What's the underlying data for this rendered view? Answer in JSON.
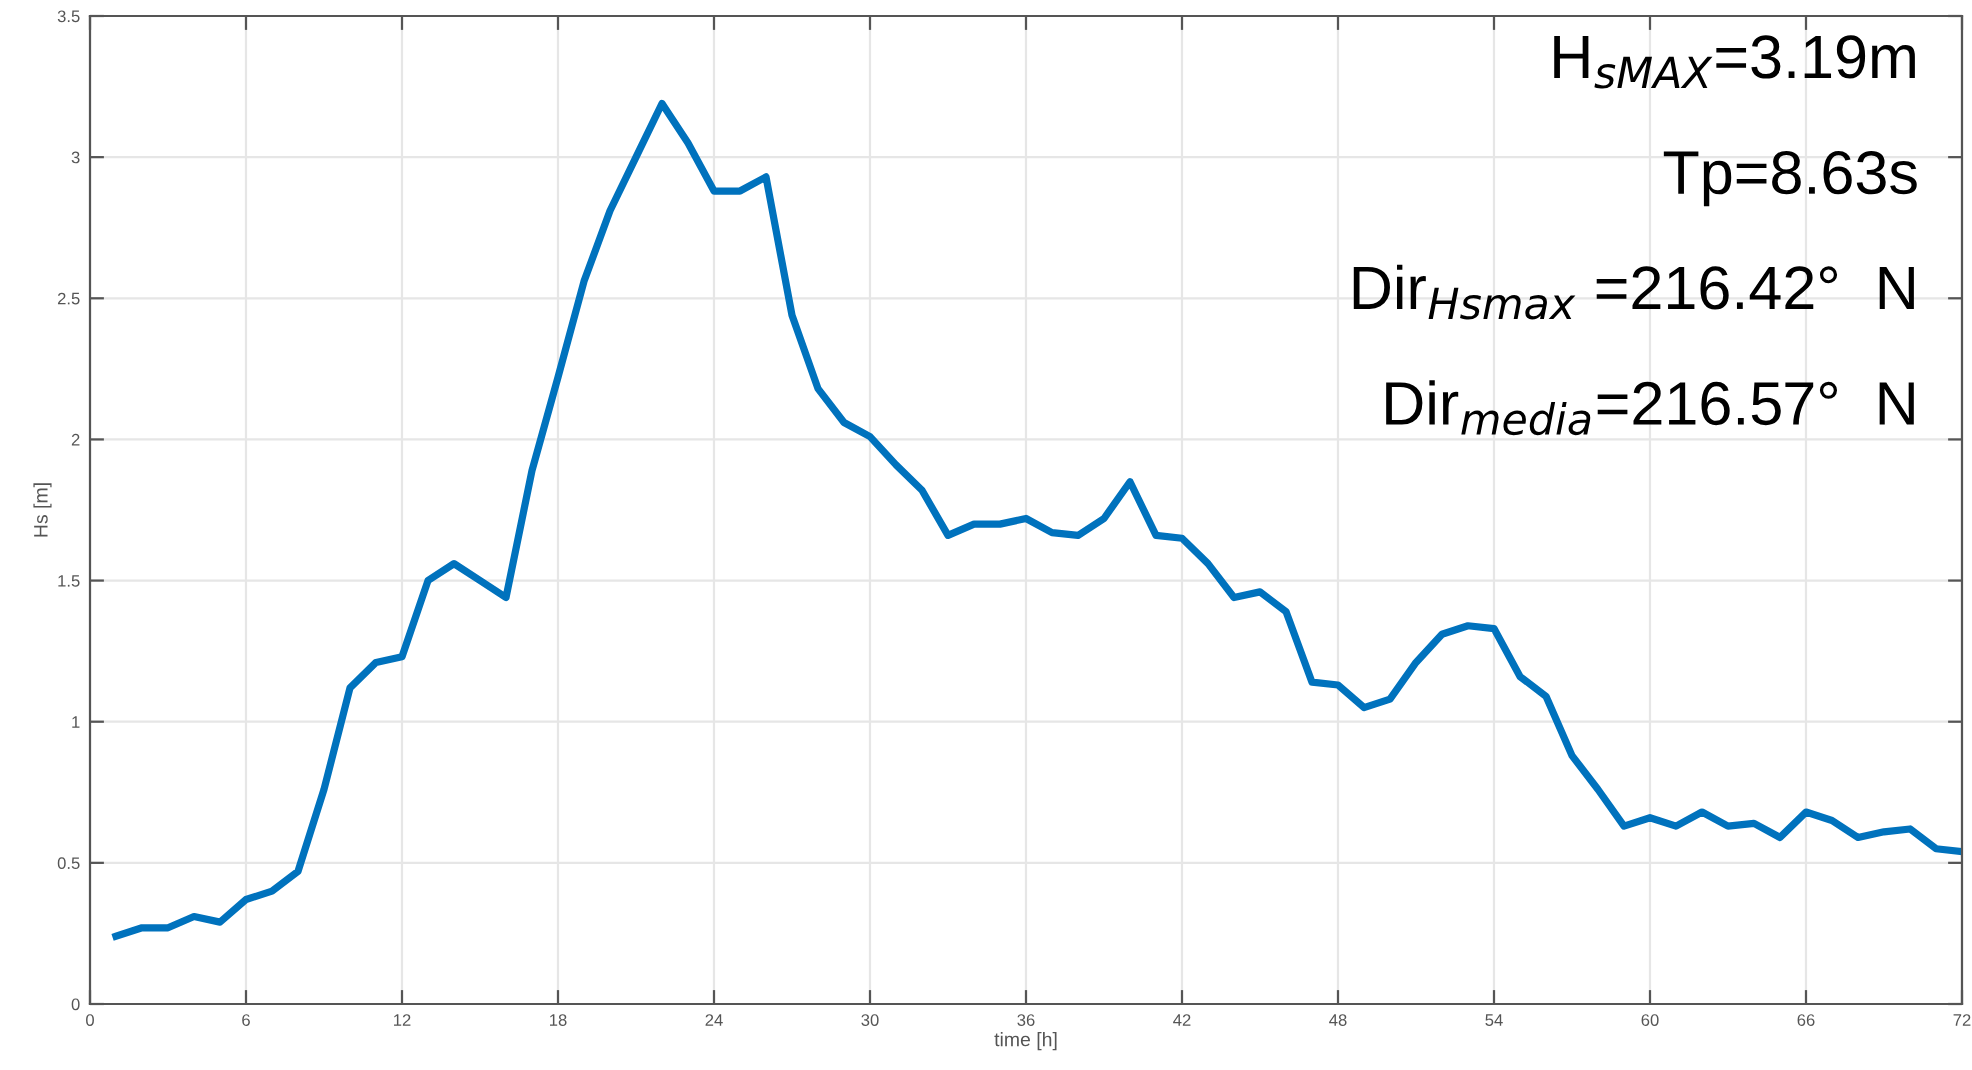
{
  "chart_data": {
    "type": "line",
    "xlabel": "time [h]",
    "ylabel": "Hs [m]",
    "x": [
      1,
      2,
      3,
      4,
      5,
      6,
      7,
      8,
      9,
      10,
      11,
      12,
      13,
      14,
      15,
      16,
      17,
      18,
      19,
      20,
      21,
      22,
      23,
      24,
      25,
      26,
      27,
      28,
      29,
      30,
      31,
      32,
      33,
      34,
      35,
      36,
      37,
      38,
      39,
      40,
      41,
      42,
      43,
      44,
      45,
      46,
      47,
      48,
      49,
      50,
      51,
      52,
      53,
      54,
      55,
      56,
      57,
      58,
      59,
      60,
      61,
      62,
      63,
      64,
      65,
      66,
      67,
      68,
      69,
      70,
      71,
      72
    ],
    "series": [
      {
        "color": "#0072bd",
        "values": [
          0.24,
          0.27,
          0.27,
          0.31,
          0.29,
          0.37,
          0.4,
          0.47,
          0.76,
          1.12,
          1.21,
          1.23,
          1.5,
          1.56,
          1.5,
          1.44,
          1.89,
          2.22,
          2.56,
          2.81,
          3.0,
          3.19,
          3.05,
          2.88,
          2.88,
          2.93,
          2.44,
          2.18,
          2.06,
          2.01,
          1.91,
          1.82,
          1.66,
          1.7,
          1.7,
          1.72,
          1.67,
          1.66,
          1.72,
          1.85,
          1.66,
          1.65,
          1.56,
          1.44,
          1.46,
          1.39,
          1.14,
          1.13,
          1.05,
          1.08,
          1.21,
          1.31,
          1.34,
          1.33,
          1.16,
          1.09,
          0.88,
          0.76,
          0.63,
          0.66,
          0.63,
          0.68,
          0.63,
          0.64,
          0.59,
          0.68,
          0.65,
          0.59,
          0.61,
          0.62,
          0.55,
          0.54
        ]
      }
    ],
    "xlim": [
      0,
      72
    ],
    "xticks": [
      0,
      6,
      12,
      18,
      24,
      30,
      36,
      42,
      48,
      54,
      60,
      66,
      72
    ],
    "ylim": [
      0,
      3.5
    ],
    "yticks": [
      0,
      0.5,
      1,
      1.5,
      2,
      2.5,
      3,
      3.5
    ],
    "grid": true,
    "marker": "none",
    "line_style": "solid",
    "annotations": [
      "H$_{sMAX}$=3.19m",
      "Tp=8.63s",
      "Dir$_{Hsmax}$ =216.42°  N",
      "Dir$_{media}$=216.57°  N"
    ]
  }
}
